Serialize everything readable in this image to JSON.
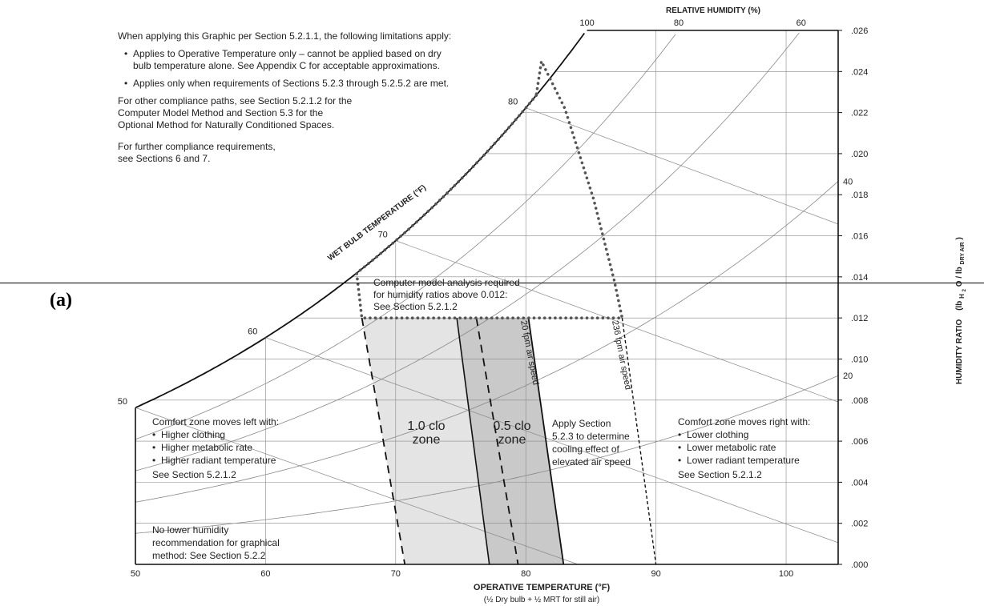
{
  "panel_label": "(a)",
  "chart_data": {
    "type": "psychrometric",
    "xlabel": "OPERATIVE TEMPERATURE   (°F)",
    "xlabel_sub": "(½ Dry bulb + ½ MRT for still air)",
    "ylabel": "HUMIDITY RATIO",
    "ylabel_unit_pre": "(lb",
    "ylabel_sub1": "H",
    "ylabel_sub2": "2",
    "ylabel_mid": "O / lb",
    "ylabel_sub3": "DRY AIR",
    "ylabel_unit_post": ")",
    "xlim": [
      50,
      104
    ],
    "ylim": [
      0.0,
      0.026
    ],
    "x_ticks": [
      "50",
      "60",
      "70",
      "80",
      "90",
      "100"
    ],
    "y_ticks": [
      ".000",
      ".002",
      ".004",
      ".006",
      ".008",
      ".010",
      ".012",
      ".014",
      ".016",
      ".018",
      ".020",
      ".022",
      ".024",
      ".026"
    ],
    "rh_title": "RELATIVE HUMIDITY   (%)",
    "rh_curves": [
      {
        "rh": 100,
        "label": "100"
      },
      {
        "rh": 80,
        "label": "80"
      },
      {
        "rh": 60,
        "label": "60"
      },
      {
        "rh": 40,
        "label": "40"
      },
      {
        "rh": 20,
        "label": "20"
      }
    ],
    "wb_title": "WET BULB TEMPERATURE   (°F)",
    "wb_lines": [
      {
        "t": 50,
        "label": "50"
      },
      {
        "t": 60,
        "label": "60"
      },
      {
        "t": 70,
        "label": "70"
      },
      {
        "t": 80,
        "label": "80"
      }
    ],
    "zones": [
      {
        "name": "1.0 clo",
        "label_line1": "1.0 clo",
        "label_line2": "zone",
        "fill": "#e4e4e4",
        "polygon": [
          [
            67.4,
            0.012
          ],
          [
            74.7,
            0.012
          ],
          [
            77.2,
            0.0
          ],
          [
            70.7,
            0.0
          ]
        ]
      },
      {
        "name": "0.5 clo",
        "label_line1": "0.5 clo",
        "label_line2": "zone",
        "fill": "#c9c9c9",
        "polygon": [
          [
            74.7,
            0.012
          ],
          [
            80.2,
            0.012
          ],
          [
            82.9,
            0.0
          ],
          [
            77.2,
            0.0
          ]
        ]
      }
    ],
    "dashed_boundaries": [
      {
        "id": "clo10-left",
        "points": [
          [
            67.4,
            0.012
          ],
          [
            70.7,
            0.0
          ]
        ]
      },
      {
        "id": "clo05-left",
        "points": [
          [
            76.2,
            0.012
          ],
          [
            79.4,
            0.0
          ]
        ]
      }
    ],
    "air_speed_lines": [
      {
        "label": "20 fpm air speed",
        "points": [
          [
            80.2,
            0.012
          ],
          [
            82.9,
            0.0
          ]
        ]
      },
      {
        "label": "236 fpm air speed",
        "points": [
          [
            87.4,
            0.012
          ],
          [
            90.0,
            0.0
          ]
        ]
      }
    ],
    "elevated_boundary": [
      [
        66.9,
        0.0138
      ],
      [
        67.4,
        0.012
      ],
      [
        87.4,
        0.012
      ],
      [
        86.8,
        0.0138
      ],
      [
        85.2,
        0.0178
      ],
      [
        83.0,
        0.0222
      ],
      [
        81.2,
        0.0245
      ],
      [
        80.8,
        0.0245
      ]
    ],
    "elevated_boundary_saturation_range": [
      66.9,
      80.8
    ],
    "horizontal_rule_y": 0.0137,
    "colors": {
      "zone_10": "#e4e4e4",
      "zone_05": "#c9c9c9",
      "grid": "#888888",
      "boundary": "#555555"
    }
  },
  "notes": {
    "limits_intro": "When applying this Graphic per Section 5.2.1.1, the following limitations apply:",
    "bullet1_line1": "Applies to Operative Temperature only – cannot be applied based on dry",
    "bullet1_line2": "bulb temperature alone. See Appendix C for acceptable approximations.",
    "bullet2": "Applies only when requirements of Sections 5.2.3 through 5.2.5.2 are met.",
    "other1": "For other compliance paths, see Section 5.2.1.2 for the",
    "other2": "Computer Model Method and Section 5.3 for the",
    "other3": "Optional Method for Naturally Conditioned Spaces.",
    "further1": "For further compliance requirements,",
    "further2": "see Sections 6 and 7.",
    "computer1": "Computer model analysis required",
    "computer2": "for humidity ratios above 0.012:",
    "computer3": "See Section 5.2.1.2",
    "left_title": "Comfort zone moves left with:",
    "left_b1": "Higher clothing",
    "left_b2": "Higher metabolic rate",
    "left_b3": "Higher radiant temperature",
    "left_see": "See Section 5.2.1.2",
    "right_title": "Comfort zone moves right with:",
    "right_b1": "Lower clothing",
    "right_b2": "Lower metabolic rate",
    "right_b3": "Lower radiant temperature",
    "right_see": "See Section 5.2.1.2",
    "apply1": "Apply Section",
    "apply2": "5.2.3 to determine",
    "apply3": "cooling effect of",
    "apply4": "elevated air speed",
    "nolow1": "No lower humidity",
    "nolow2": "recommendation for graphical",
    "nolow3": "method: See Section 5.2.2"
  }
}
